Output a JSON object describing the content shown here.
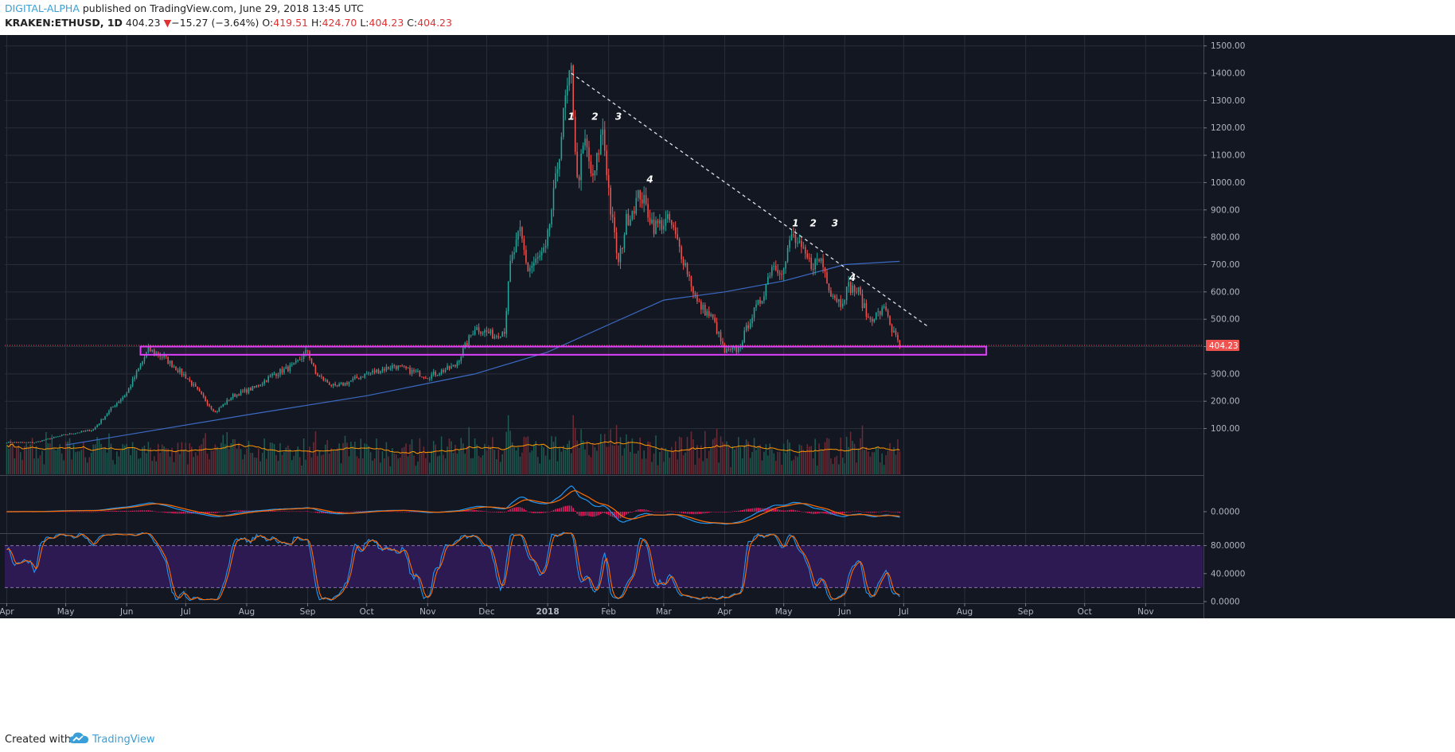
{
  "header": {
    "author": "DIGITAL-ALPHA",
    "published_text": "published on TradingView.com, June 29, 2018 13:45 UTC",
    "symbol": "KRAKEN:ETHUSD, 1D",
    "last": "404.23",
    "arrow": "▼",
    "change": "−15.27 (−3.64%)",
    "o_label": "O:",
    "o_value": "419.51",
    "h_label": "H:",
    "h_value": "424.70",
    "l_label": "L:",
    "l_value": "404.23",
    "c_label": "C:",
    "c_value": "404.23"
  },
  "footer": {
    "created_text": "Created with",
    "brand": "TradingView",
    "logo_icon": "tradingview-cloud-icon"
  },
  "colors": {
    "background": "#131722",
    "grid": "#2a2e39",
    "up": "#26a69a",
    "down": "#ef5350",
    "zone": "#e040fb",
    "ma": "#3c6ac4",
    "macd": "#2196f3",
    "signal": "#ff6d00",
    "stoch_band": "#2d1a52"
  },
  "chart_data": [
    {
      "type": "candlestick",
      "symbol": "KRAKEN:ETHUSD",
      "interval": "1D",
      "x_axis_ticks": [
        "Apr",
        "May",
        "Jun",
        "Jul",
        "Aug",
        "Sep",
        "Oct",
        "Nov",
        "Dec",
        "2018",
        "Feb",
        "Mar",
        "Apr",
        "May",
        "Jun",
        "Jul",
        "Aug",
        "Sep",
        "Oct",
        "Nov"
      ],
      "y_axis_ticks": [
        "1500.00",
        "1400.00",
        "1300.00",
        "1200.00",
        "1100.00",
        "1000.00",
        "900.00",
        "800.00",
        "700.00",
        "600.00",
        "500.00",
        "400.00",
        "300.00",
        "200.00",
        "100.00"
      ],
      "ylim": [
        0,
        1530
      ],
      "last_price_label": "404.23",
      "close_path": [
        [
          "2017-04-01",
          50
        ],
        [
          "2017-04-15",
          49
        ],
        [
          "2017-05-01",
          78
        ],
        [
          "2017-05-15",
          96
        ],
        [
          "2017-05-25",
          180
        ],
        [
          "2017-06-01",
          230
        ],
        [
          "2017-06-12",
          390
        ],
        [
          "2017-06-20",
          360
        ],
        [
          "2017-07-01",
          290
        ],
        [
          "2017-07-16",
          160
        ],
        [
          "2017-07-25",
          220
        ],
        [
          "2017-08-05",
          250
        ],
        [
          "2017-08-15",
          300
        ],
        [
          "2017-08-25",
          330
        ],
        [
          "2017-09-01",
          385
        ],
        [
          "2017-09-05",
          300
        ],
        [
          "2017-09-15",
          250
        ],
        [
          "2017-10-01",
          300
        ],
        [
          "2017-10-15",
          330
        ],
        [
          "2017-11-01",
          290
        ],
        [
          "2017-11-15",
          330
        ],
        [
          "2017-11-25",
          470
        ],
        [
          "2017-12-05",
          440
        ],
        [
          "2017-12-10",
          460
        ],
        [
          "2017-12-13",
          700
        ],
        [
          "2017-12-18",
          820
        ],
        [
          "2017-12-22",
          680
        ],
        [
          "2017-12-31",
          750
        ],
        [
          "2018-01-05",
          1000
        ],
        [
          "2018-01-10",
          1300
        ],
        [
          "2018-01-13",
          1400
        ],
        [
          "2018-01-16",
          1000
        ],
        [
          "2018-01-20",
          1150
        ],
        [
          "2018-01-24",
          1000
        ],
        [
          "2018-01-29",
          1200
        ],
        [
          "2018-02-02",
          900
        ],
        [
          "2018-02-06",
          700
        ],
        [
          "2018-02-10",
          860
        ],
        [
          "2018-02-17",
          960
        ],
        [
          "2018-02-24",
          840
        ],
        [
          "2018-03-04",
          860
        ],
        [
          "2018-03-12",
          700
        ],
        [
          "2018-03-18",
          560
        ],
        [
          "2018-03-26",
          500
        ],
        [
          "2018-04-01",
          380
        ],
        [
          "2018-04-08",
          390
        ],
        [
          "2018-04-14",
          500
        ],
        [
          "2018-04-20",
          580
        ],
        [
          "2018-04-25",
          700
        ],
        [
          "2018-05-01",
          680
        ],
        [
          "2018-05-05",
          810
        ],
        [
          "2018-05-10",
          750
        ],
        [
          "2018-05-15",
          700
        ],
        [
          "2018-05-20",
          720
        ],
        [
          "2018-05-25",
          600
        ],
        [
          "2018-05-30",
          560
        ],
        [
          "2018-06-03",
          620
        ],
        [
          "2018-06-08",
          600
        ],
        [
          "2018-06-13",
          500
        ],
        [
          "2018-06-18",
          520
        ],
        [
          "2018-06-22",
          540
        ],
        [
          "2018-06-25",
          460
        ],
        [
          "2018-06-29",
          404.23
        ]
      ],
      "moving_average": [
        [
          "2017-05-01",
          40
        ],
        [
          "2017-08-01",
          150
        ],
        [
          "2017-10-01",
          220
        ],
        [
          "2017-11-25",
          300
        ],
        [
          "2018-01-01",
          380
        ],
        [
          "2018-02-01",
          480
        ],
        [
          "2018-03-01",
          570
        ],
        [
          "2018-04-01",
          600
        ],
        [
          "2018-05-01",
          640
        ],
        [
          "2018-06-01",
          700
        ],
        [
          "2018-06-29",
          712
        ]
      ],
      "support_zone": {
        "from": "2017-06-08",
        "to": "2018-08-12",
        "low": 370,
        "high": 400
      },
      "trendline": {
        "from": [
          "2018-01-13",
          1400
        ],
        "to": [
          "2018-07-14",
          470
        ],
        "style": "dashed"
      },
      "annotations": [
        {
          "text": "1",
          "date": "2018-01-13",
          "price": 1230
        },
        {
          "text": "2",
          "date": "2018-01-25",
          "price": 1230
        },
        {
          "text": "3",
          "date": "2018-02-06",
          "price": 1230
        },
        {
          "text": "4",
          "date": "2018-02-22",
          "price": 1000
        },
        {
          "text": "1",
          "date": "2018-05-07",
          "price": 840
        },
        {
          "text": "2",
          "date": "2018-05-16",
          "price": 840
        },
        {
          "text": "3",
          "date": "2018-05-27",
          "price": 840
        },
        {
          "text": "4",
          "date": "2018-06-05",
          "price": 640
        }
      ]
    },
    {
      "type": "bar",
      "name": "Volume",
      "note": "volume histogram with moving average overlay drawn at the bottom of the price pane"
    },
    {
      "type": "line",
      "name": "MACD",
      "y_axis_ticks": [
        "0.0000"
      ],
      "series_count": 3
    },
    {
      "type": "line",
      "name": "Stochastic",
      "y_axis_ticks": [
        "80.0000",
        "40.0000",
        "0.0000"
      ],
      "band": [
        20,
        80
      ]
    }
  ]
}
